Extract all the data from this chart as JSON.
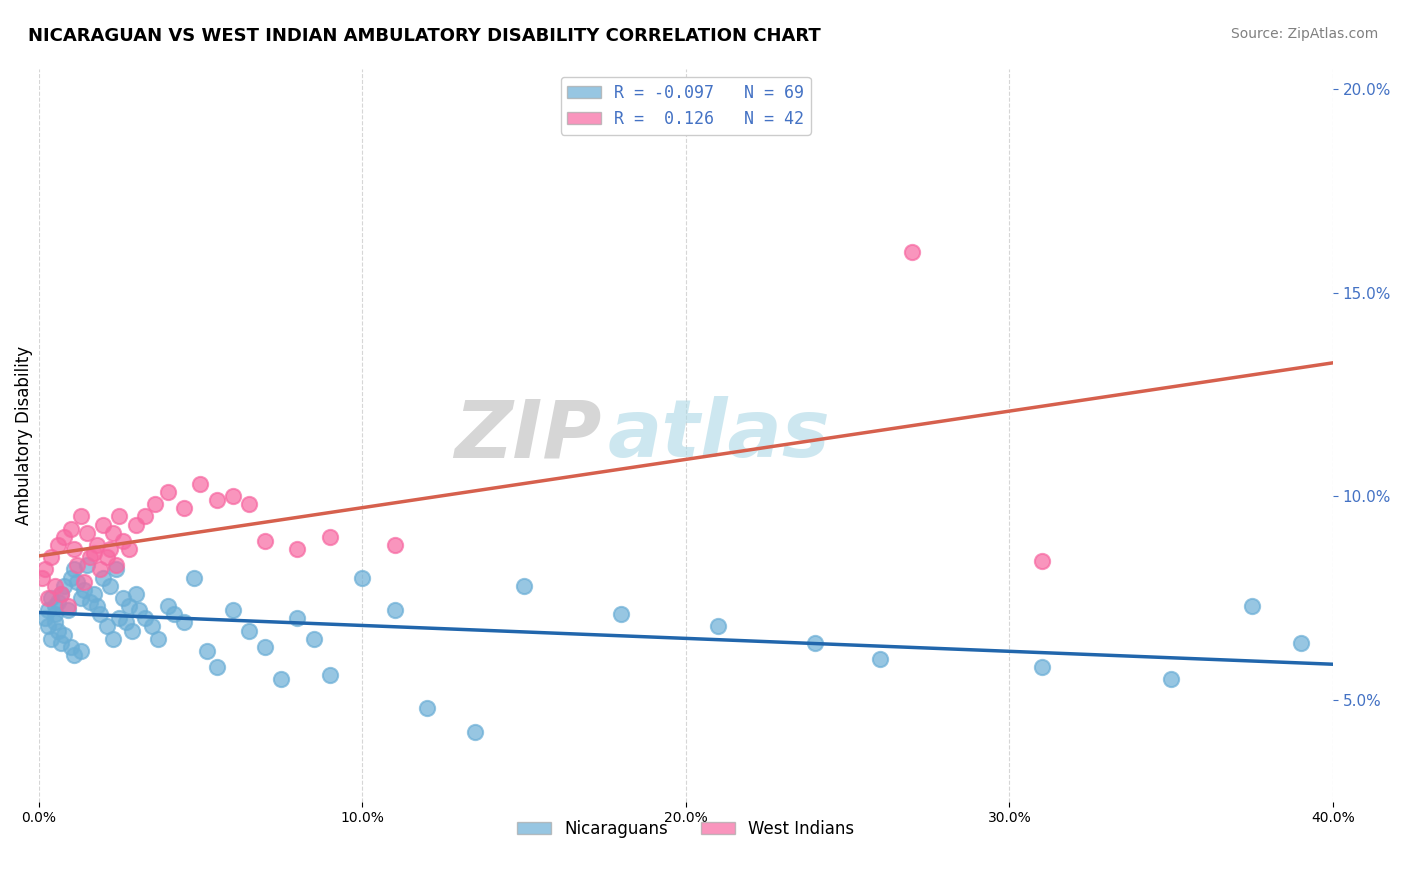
{
  "title": "NICARAGUAN VS WEST INDIAN AMBULATORY DISABILITY CORRELATION CHART",
  "source": "Source: ZipAtlas.com",
  "ylabel": "Ambulatory Disability",
  "xlim": [
    0.0,
    0.4
  ],
  "ylim": [
    0.025,
    0.205
  ],
  "xticks": [
    0.0,
    0.1,
    0.2,
    0.3,
    0.4
  ],
  "yticks_right": [
    0.05,
    0.1,
    0.15,
    0.2
  ],
  "legend_labels": [
    "Nicaraguans",
    "West Indians"
  ],
  "R_nicaraguan": -0.097,
  "N_nicaraguan": 69,
  "R_westindian": 0.126,
  "N_westindian": 42,
  "color_nicaraguan": "#6baed6",
  "color_westindian": "#f768a1",
  "line_color_nicaraguan": "#2166ac",
  "line_color_westindian": "#d6604d",
  "background_color": "#ffffff",
  "watermark_zip": "ZIP",
  "watermark_atlas": "atlas",
  "nicaraguan_x": [
    0.002,
    0.003,
    0.003,
    0.004,
    0.004,
    0.005,
    0.005,
    0.005,
    0.006,
    0.006,
    0.007,
    0.007,
    0.008,
    0.008,
    0.009,
    0.01,
    0.01,
    0.011,
    0.011,
    0.012,
    0.013,
    0.013,
    0.014,
    0.015,
    0.016,
    0.017,
    0.018,
    0.019,
    0.02,
    0.021,
    0.022,
    0.023,
    0.024,
    0.025,
    0.026,
    0.027,
    0.028,
    0.029,
    0.03,
    0.031,
    0.033,
    0.035,
    0.037,
    0.04,
    0.042,
    0.045,
    0.048,
    0.052,
    0.055,
    0.06,
    0.065,
    0.07,
    0.075,
    0.08,
    0.085,
    0.09,
    0.1,
    0.11,
    0.12,
    0.135,
    0.15,
    0.18,
    0.21,
    0.24,
    0.26,
    0.31,
    0.35,
    0.375,
    0.39
  ],
  "nicaraguan_y": [
    0.07,
    0.072,
    0.068,
    0.075,
    0.065,
    0.073,
    0.071,
    0.069,
    0.074,
    0.067,
    0.076,
    0.064,
    0.078,
    0.066,
    0.072,
    0.08,
    0.063,
    0.082,
    0.061,
    0.079,
    0.075,
    0.062,
    0.077,
    0.083,
    0.074,
    0.076,
    0.073,
    0.071,
    0.08,
    0.068,
    0.078,
    0.065,
    0.082,
    0.07,
    0.075,
    0.069,
    0.073,
    0.067,
    0.076,
    0.072,
    0.07,
    0.068,
    0.065,
    0.073,
    0.071,
    0.069,
    0.08,
    0.062,
    0.058,
    0.072,
    0.067,
    0.063,
    0.055,
    0.07,
    0.065,
    0.056,
    0.08,
    0.072,
    0.048,
    0.042,
    0.078,
    0.071,
    0.068,
    0.064,
    0.06,
    0.058,
    0.055,
    0.073,
    0.064
  ],
  "westindian_x": [
    0.001,
    0.002,
    0.003,
    0.004,
    0.005,
    0.006,
    0.007,
    0.008,
    0.009,
    0.01,
    0.011,
    0.012,
    0.013,
    0.014,
    0.015,
    0.016,
    0.017,
    0.018,
    0.019,
    0.02,
    0.021,
    0.022,
    0.023,
    0.024,
    0.025,
    0.026,
    0.028,
    0.03,
    0.033,
    0.036,
    0.04,
    0.045,
    0.05,
    0.055,
    0.06,
    0.065,
    0.07,
    0.08,
    0.09,
    0.11,
    0.27,
    0.31
  ],
  "westindian_y": [
    0.08,
    0.082,
    0.075,
    0.085,
    0.078,
    0.088,
    0.076,
    0.09,
    0.073,
    0.092,
    0.087,
    0.083,
    0.095,
    0.079,
    0.091,
    0.085,
    0.086,
    0.088,
    0.082,
    0.093,
    0.085,
    0.087,
    0.091,
    0.083,
    0.095,
    0.089,
    0.087,
    0.093,
    0.095,
    0.098,
    0.101,
    0.097,
    0.103,
    0.099,
    0.1,
    0.098,
    0.089,
    0.087,
    0.09,
    0.088,
    0.16,
    0.084
  ]
}
